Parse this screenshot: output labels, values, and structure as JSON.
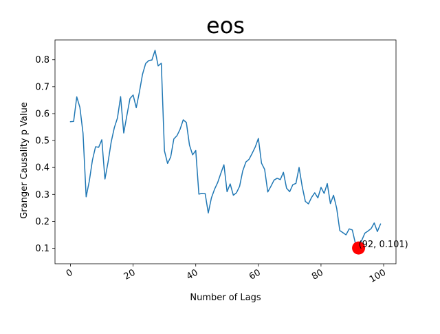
{
  "chart_data": {
    "type": "line",
    "title": "eos",
    "xlabel": "Number of Lags",
    "ylabel": "Granger Causality p Value",
    "xlim": [
      -4.95,
      103.95
    ],
    "ylim": [
      0.0425,
      0.8735
    ],
    "xticks": [
      0,
      20,
      40,
      60,
      80,
      100
    ],
    "yticks": [
      0.1,
      0.2,
      0.3,
      0.4,
      0.5,
      0.6,
      0.7,
      0.8
    ],
    "grid": false,
    "line_color": "#1f77b4",
    "series": [
      {
        "x": [
          0,
          1,
          2,
          3,
          4,
          5,
          6,
          7,
          8,
          9,
          10,
          11,
          12,
          13,
          14,
          15,
          16,
          17,
          18,
          19,
          20,
          21,
          22,
          23,
          24,
          25,
          26,
          27,
          28,
          29,
          30,
          31,
          32,
          33,
          34,
          35,
          36,
          37,
          38,
          39,
          40,
          41,
          42,
          43,
          44,
          45,
          46,
          47,
          48,
          49,
          50,
          51,
          52,
          53,
          54,
          55,
          56,
          57,
          58,
          59,
          60,
          61,
          62,
          63,
          64,
          65,
          66,
          67,
          68,
          69,
          70,
          71,
          72,
          73,
          74,
          75,
          76,
          77,
          78,
          79,
          80,
          81,
          82,
          83,
          84,
          85,
          86,
          87,
          88,
          89,
          90,
          91,
          92,
          93,
          94,
          95,
          96,
          97,
          98,
          99
        ],
        "values": [
          0.57,
          0.571,
          0.662,
          0.623,
          0.527,
          0.291,
          0.349,
          0.427,
          0.477,
          0.475,
          0.503,
          0.357,
          0.42,
          0.495,
          0.548,
          0.584,
          0.663,
          0.528,
          0.593,
          0.656,
          0.669,
          0.622,
          0.68,
          0.746,
          0.786,
          0.797,
          0.799,
          0.835,
          0.777,
          0.787,
          0.462,
          0.415,
          0.439,
          0.506,
          0.518,
          0.542,
          0.577,
          0.567,
          0.483,
          0.447,
          0.463,
          0.301,
          0.304,
          0.303,
          0.231,
          0.287,
          0.319,
          0.344,
          0.378,
          0.41,
          0.31,
          0.339,
          0.297,
          0.306,
          0.33,
          0.387,
          0.42,
          0.43,
          0.452,
          0.476,
          0.508,
          0.416,
          0.393,
          0.309,
          0.33,
          0.353,
          0.36,
          0.355,
          0.382,
          0.323,
          0.31,
          0.336,
          0.341,
          0.4,
          0.329,
          0.274,
          0.265,
          0.289,
          0.306,
          0.287,
          0.326,
          0.304,
          0.34,
          0.266,
          0.297,
          0.249,
          0.166,
          0.158,
          0.15,
          0.172,
          0.168,
          0.117,
          0.101,
          0.129,
          0.156,
          0.164,
          0.173,
          0.194,
          0.162,
          0.19
        ]
      }
    ],
    "highlight": {
      "x": 92,
      "y": 0.101,
      "label": "(92, 0.101)",
      "color": "#ff0000"
    }
  }
}
